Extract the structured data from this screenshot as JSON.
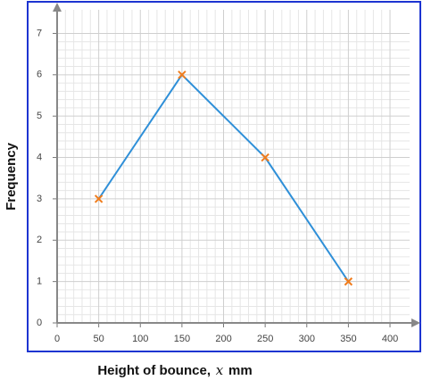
{
  "chart_data": {
    "type": "line",
    "xlabel": "Height of bounce,",
    "xlabel_var": "x",
    "xlabel_unit": "mm",
    "ylabel": "Frequency",
    "x": [
      50,
      150,
      250,
      350
    ],
    "series": [
      {
        "color": "#2e8fd8",
        "marker_color": "#f07c1c",
        "values": [
          3,
          6,
          4,
          1
        ]
      }
    ],
    "xlim": [
      0,
      430
    ],
    "ylim": [
      0,
      7.7
    ],
    "xticks": [
      0,
      50,
      100,
      150,
      200,
      250,
      300,
      350,
      400
    ],
    "yticks": [
      0,
      1,
      2,
      3,
      4,
      5,
      6,
      7
    ],
    "grid": true
  }
}
